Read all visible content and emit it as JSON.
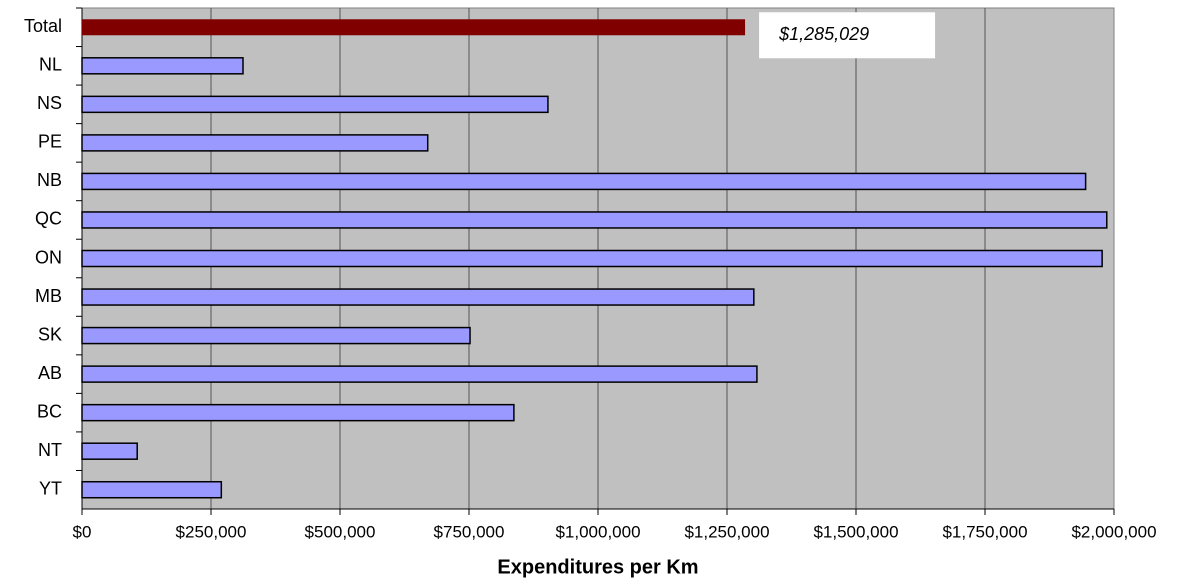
{
  "chart_data": {
    "type": "barh",
    "xlabel": "Expenditures per Km",
    "categories": [
      "Total",
      "NL",
      "NS",
      "PE",
      "NB",
      "QC",
      "ON",
      "MB",
      "SK",
      "AB",
      "BC",
      "NT",
      "YT"
    ],
    "values": [
      1285029,
      312000,
      903000,
      670000,
      1945000,
      1986000,
      1977000,
      1302000,
      752000,
      1308000,
      837000,
      107000,
      270000
    ],
    "value_labels": [
      "$1,285,029",
      null,
      null,
      null,
      null,
      null,
      null,
      null,
      null,
      null,
      null,
      null,
      null
    ],
    "colors": [
      "#800000",
      "#9999ff",
      "#9999ff",
      "#9999ff",
      "#9999ff",
      "#9999ff",
      "#9999ff",
      "#9999ff",
      "#9999ff",
      "#9999ff",
      "#9999ff",
      "#9999ff",
      "#9999ff"
    ],
    "xlim": [
      0,
      2000000
    ],
    "xticks": [
      {
        "value": 0,
        "label": "$0"
      },
      {
        "value": 250000,
        "label": "$250,000"
      },
      {
        "value": 500000,
        "label": "$500,000"
      },
      {
        "value": 750000,
        "label": "$750,000"
      },
      {
        "value": 1000000,
        "label": "$1,000,000"
      },
      {
        "value": 1250000,
        "label": "$1,250,000"
      },
      {
        "value": 1500000,
        "label": "$1,500,000"
      },
      {
        "value": 1750000,
        "label": "$1,750,000"
      },
      {
        "value": 2000000,
        "label": "$2,000,000"
      }
    ],
    "grid": true
  }
}
